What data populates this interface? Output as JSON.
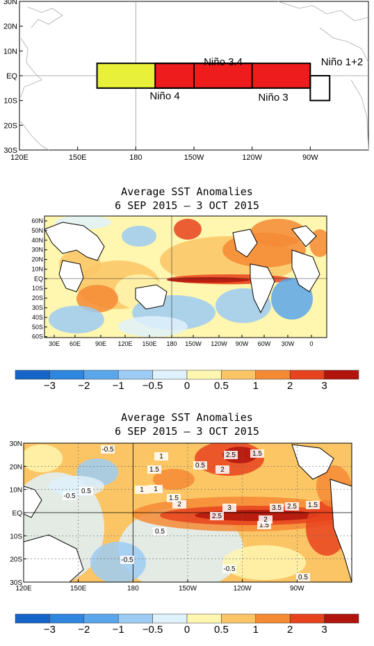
{
  "chart_data": [
    {
      "type": "map",
      "panel": "nino-regions",
      "x_ticks": [
        "120E",
        "150E",
        "180",
        "150W",
        "120W",
        "90W"
      ],
      "y_ticks": [
        "30N",
        "20N",
        "10N",
        "EQ",
        "10S",
        "20S",
        "30S"
      ],
      "regions": [
        {
          "name": "Niño 4",
          "lon": [
            160,
            210
          ],
          "lat": [
            -5,
            5
          ],
          "color": "#e8f03a"
        },
        {
          "name": "Niño 3.4",
          "lon": [
            190,
            240
          ],
          "lat": [
            -5,
            5
          ],
          "color": "#ee1c1c"
        },
        {
          "name": "Niño 3",
          "lon": [
            210,
            270
          ],
          "lat": [
            -5,
            5
          ],
          "color": "#ee1c1c"
        },
        {
          "name": "Niño 1+2",
          "lon": [
            270,
            280
          ],
          "lat": [
            -10,
            0
          ],
          "color": "#ffffff"
        }
      ]
    },
    {
      "type": "heatmap",
      "panel": "global-sst",
      "title_line1": "Average SST Anomalies",
      "title_line2": "6 SEP 2015 – 3 OCT 2015",
      "x_ticks": [
        "30E",
        "60E",
        "90E",
        "120E",
        "150E",
        "180",
        "150W",
        "120W",
        "90W",
        "60W",
        "30W",
        "0"
      ],
      "y_ticks": [
        "60N",
        "50N",
        "40N",
        "30N",
        "20N",
        "10N",
        "EQ",
        "10S",
        "20S",
        "30S",
        "40S",
        "50S",
        "60S"
      ]
    },
    {
      "type": "heatmap",
      "panel": "pacific-sst",
      "title_line1": "Average SST Anomalies",
      "title_line2": "6 SEP 2015 – 3 OCT 2015",
      "x_ticks": [
        "120E",
        "150E",
        "180",
        "150W",
        "120W",
        "90W"
      ],
      "y_ticks": [
        "30N",
        "20N",
        "10N",
        "EQ",
        "10S",
        "20S",
        "30S"
      ],
      "contour_labels": [
        "2.5",
        "1.5",
        "1",
        "2",
        "1.5",
        "0.5",
        "-0.5",
        "0.5",
        "1",
        "1.5",
        "2",
        "3",
        "3.5",
        "2.5",
        "2.5",
        "1.5",
        "-0.5",
        "0.5",
        "-0.5",
        "-0.5",
        "0.5",
        "2",
        "1",
        "1.5"
      ]
    }
  ],
  "colorbar": {
    "labels": [
      "-3",
      "-2",
      "-1",
      "-0.5",
      "0",
      "0.5",
      "1",
      "2",
      "3"
    ],
    "colors": [
      "#1565c8",
      "#2e86de",
      "#5aa6ea",
      "#9ccbf3",
      "#dff1fb",
      "#fff6b0",
      "#fbc565",
      "#f58a35",
      "#e8431f",
      "#b0140c"
    ]
  }
}
